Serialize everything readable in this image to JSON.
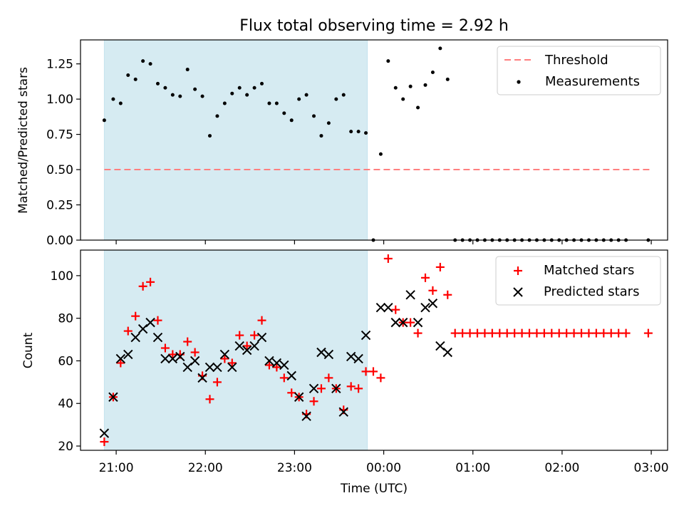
{
  "figure": {
    "title": "Flux total observing time = 2.92 h",
    "xlabel": "Time (UTC)",
    "x_ticks": [
      "21:00",
      "22:00",
      "23:00",
      "00:00",
      "01:00",
      "02:00",
      "03:00"
    ],
    "shaded_span": {
      "start": "20:52",
      "end": "23:49",
      "color": "#add8e6"
    }
  },
  "chart_data": [
    {
      "type": "scatter",
      "title": "Flux total observing time = 2.92 h",
      "ylabel": "Matched/Predicted stars",
      "ylim": [
        0,
        1.42
      ],
      "y_ticks": [
        "0.00",
        "0.25",
        "0.50",
        "0.75",
        "1.00",
        "1.25"
      ],
      "legend": {
        "placement": "upper right",
        "entries": [
          "Threshold",
          "Measurements"
        ]
      },
      "series": [
        {
          "name": "Threshold",
          "kind": "dashed-line",
          "color": "#ff7f7f",
          "x": [
            "20:52",
            "03:00"
          ],
          "y": [
            0.5,
            0.5
          ]
        },
        {
          "name": "Measurements",
          "kind": "dot",
          "color": "#000000",
          "x": [
            "20:52",
            "20:58",
            "21:03",
            "21:08",
            "21:13",
            "21:18",
            "21:23",
            "21:28",
            "21:33",
            "21:38",
            "21:43",
            "21:48",
            "21:53",
            "21:58",
            "22:03",
            "22:08",
            "22:13",
            "22:18",
            "22:23",
            "22:28",
            "22:33",
            "22:38",
            "22:43",
            "22:48",
            "22:53",
            "22:58",
            "23:03",
            "23:08",
            "23:13",
            "23:18",
            "23:23",
            "23:28",
            "23:33",
            "23:38",
            "23:43",
            "23:48",
            "23:53",
            "23:58",
            "00:03",
            "00:08",
            "00:13",
            "00:18",
            "00:23",
            "00:28",
            "00:33",
            "00:38",
            "00:43",
            "00:48",
            "00:53",
            "00:58",
            "01:03",
            "01:08",
            "01:13",
            "01:18",
            "01:23",
            "01:28",
            "01:33",
            "01:38",
            "01:43",
            "01:48",
            "01:53",
            "01:58",
            "02:03",
            "02:08",
            "02:13",
            "02:18",
            "02:23",
            "02:28",
            "02:33",
            "02:38",
            "02:43",
            "02:58"
          ],
          "y": [
            0.85,
            1.0,
            0.97,
            1.17,
            1.14,
            1.27,
            1.25,
            1.11,
            1.08,
            1.03,
            1.02,
            1.21,
            1.07,
            1.02,
            0.74,
            0.88,
            0.97,
            1.04,
            1.08,
            1.03,
            1.08,
            1.11,
            0.97,
            0.97,
            0.9,
            0.85,
            1.0,
            1.03,
            0.88,
            0.74,
            0.83,
            1.0,
            1.03,
            0.77,
            0.77,
            0.76,
            0.0,
            0.61,
            1.27,
            1.08,
            1.0,
            1.09,
            0.94,
            1.1,
            1.19,
            1.36,
            1.14,
            0.0,
            0.0,
            0.0,
            0.0,
            0.0,
            0.0,
            0.0,
            0.0,
            0.0,
            0.0,
            0.0,
            0.0,
            0.0,
            0.0,
            0.0,
            0.0,
            0.0,
            0.0,
            0.0,
            0.0,
            0.0,
            0.0,
            0.0,
            0.0,
            0.0
          ]
        }
      ]
    },
    {
      "type": "scatter",
      "ylabel": "Count",
      "ylim": [
        18,
        112
      ],
      "y_ticks": [
        "20",
        "40",
        "60",
        "80",
        "100"
      ],
      "legend": {
        "placement": "upper right",
        "entries": [
          "Matched stars",
          "Predicted stars"
        ]
      },
      "series": [
        {
          "name": "Matched stars",
          "marker": "plus",
          "color": "#ff0000",
          "x": [
            "20:52",
            "20:58",
            "21:03",
            "21:08",
            "21:13",
            "21:18",
            "21:23",
            "21:28",
            "21:33",
            "21:38",
            "21:43",
            "21:48",
            "21:53",
            "21:58",
            "22:03",
            "22:08",
            "22:13",
            "22:18",
            "22:23",
            "22:28",
            "22:33",
            "22:38",
            "22:43",
            "22:48",
            "22:53",
            "22:58",
            "23:03",
            "23:08",
            "23:13",
            "23:18",
            "23:23",
            "23:28",
            "23:33",
            "23:38",
            "23:43",
            "23:48",
            "23:53",
            "23:58",
            "00:03",
            "00:08",
            "00:13",
            "00:18",
            "00:23",
            "00:28",
            "00:33",
            "00:38",
            "00:43",
            "00:48",
            "00:53",
            "00:58",
            "01:03",
            "01:08",
            "01:13",
            "01:18",
            "01:23",
            "01:28",
            "01:33",
            "01:38",
            "01:43",
            "01:48",
            "01:53",
            "01:58",
            "02:03",
            "02:08",
            "02:13",
            "02:18",
            "02:23",
            "02:28",
            "02:33",
            "02:38",
            "02:43",
            "02:58"
          ],
          "y": [
            22,
            43,
            59,
            74,
            81,
            95,
            97,
            79,
            66,
            63,
            63,
            69,
            64,
            53,
            42,
            50,
            61,
            59,
            72,
            67,
            72,
            79,
            58,
            57,
            52,
            45,
            43,
            35,
            41,
            47,
            52,
            47,
            37,
            48,
            47,
            55,
            55,
            52,
            108,
            84,
            78,
            78,
            73,
            99,
            93,
            104,
            91,
            73,
            73,
            73,
            73,
            73,
            73,
            73,
            73,
            73,
            73,
            73,
            73,
            73,
            73,
            73,
            73,
            73,
            73,
            73,
            73,
            73,
            73,
            73,
            73,
            73
          ]
        },
        {
          "name": "Predicted stars",
          "marker": "x",
          "color": "#000000",
          "x": [
            "20:52",
            "20:58",
            "21:03",
            "21:08",
            "21:13",
            "21:18",
            "21:23",
            "21:28",
            "21:33",
            "21:38",
            "21:43",
            "21:48",
            "21:53",
            "21:58",
            "22:03",
            "22:08",
            "22:13",
            "22:18",
            "22:23",
            "22:28",
            "22:33",
            "22:38",
            "22:43",
            "22:48",
            "22:53",
            "22:58",
            "23:03",
            "23:08",
            "23:13",
            "23:18",
            "23:23",
            "23:28",
            "23:33",
            "23:38",
            "23:43",
            "23:48",
            "23:58",
            "00:03",
            "00:08",
            "00:13",
            "00:18",
            "00:23",
            "00:28",
            "00:33",
            "00:38",
            "00:43",
            "00:48"
          ],
          "y": [
            26,
            43,
            61,
            63,
            71,
            75,
            78,
            71,
            61,
            61,
            62,
            57,
            60,
            52,
            57,
            57,
            63,
            57,
            67,
            65,
            67,
            71,
            60,
            59,
            58,
            53,
            43,
            34,
            47,
            64,
            63,
            47,
            36,
            62,
            61,
            72,
            85,
            85,
            78,
            78,
            91,
            78,
            85,
            87,
            67,
            64,
            null
          ]
        }
      ]
    }
  ]
}
